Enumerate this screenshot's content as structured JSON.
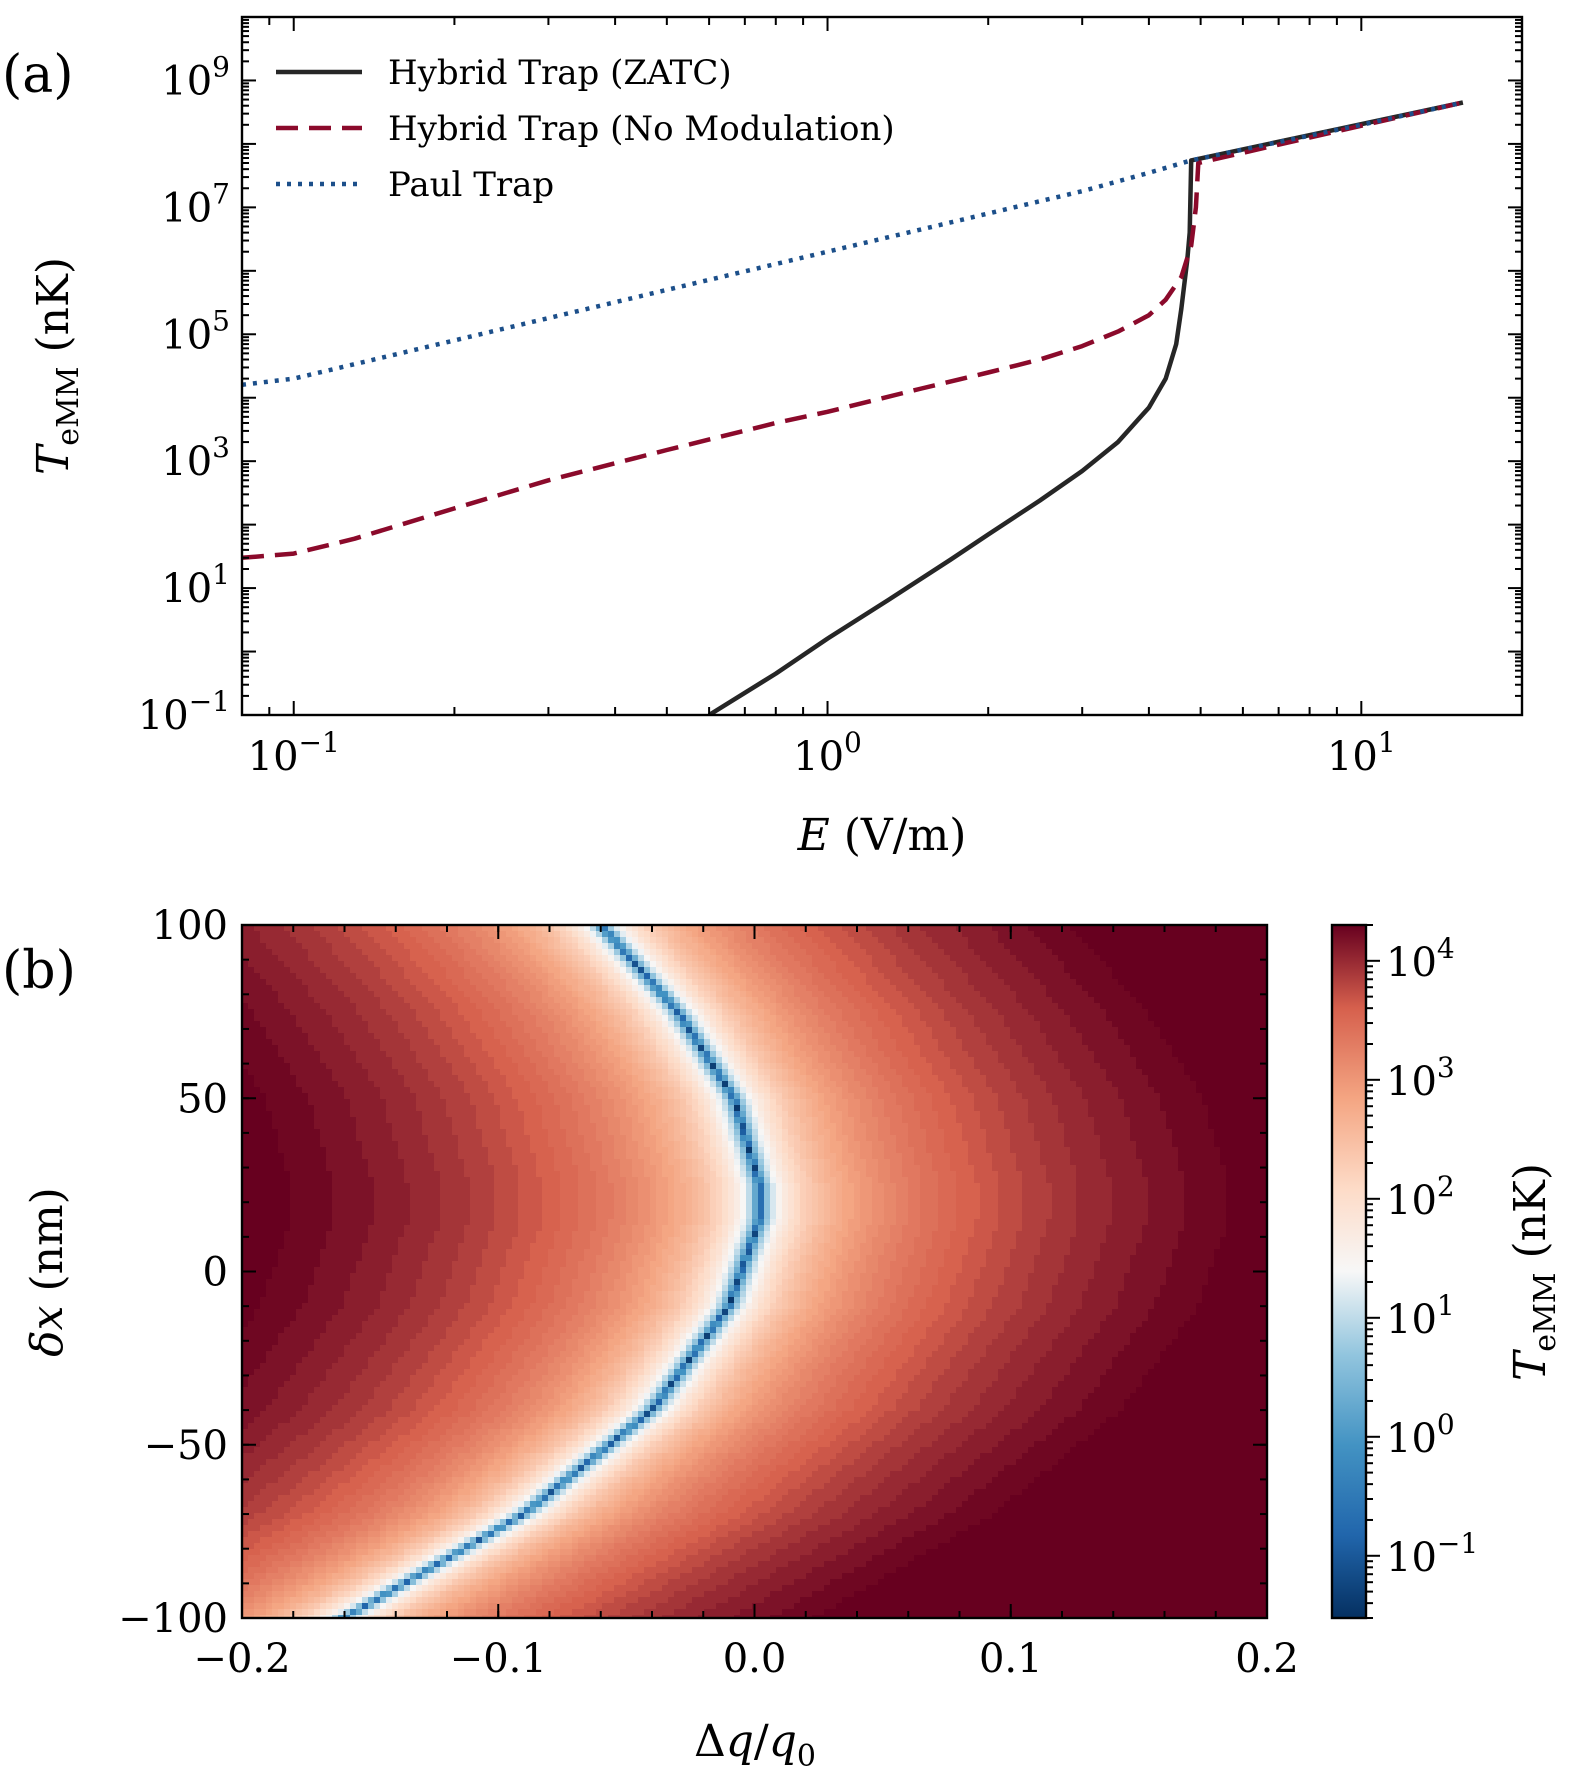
{
  "chart_data": [
    {
      "type": "line",
      "panel_label": "(a)",
      "xlabel": "E (V/m)",
      "ylabel": "T_eMM (nK)",
      "xscale": "log",
      "yscale": "log",
      "xlim": [
        0.08,
        20
      ],
      "ylim": [
        0.1,
        10000000000
      ],
      "x_ticks": [
        {
          "label": "10",
          "exp": "−1"
        },
        {
          "label": "10",
          "exp": "0"
        },
        {
          "label": "10",
          "exp": "1"
        }
      ],
      "y_ticks": [
        {
          "label": "10",
          "exp": "−1"
        },
        {
          "label": "10",
          "exp": "1"
        },
        {
          "label": "10",
          "exp": "3"
        },
        {
          "label": "10",
          "exp": "5"
        },
        {
          "label": "10",
          "exp": "7"
        },
        {
          "label": "10",
          "exp": "9"
        }
      ],
      "legend_position": "upper-left",
      "series": [
        {
          "name": "Hybrid Trap (ZATC)",
          "style": "solid",
          "color": "#262626",
          "points": [
            [
              0.6,
              0.1
            ],
            [
              0.8,
              0.45
            ],
            [
              1.0,
              1.6
            ],
            [
              1.3,
              6.5
            ],
            [
              1.7,
              28
            ],
            [
              2.0,
              70
            ],
            [
              2.5,
              240
            ],
            [
              3.0,
              700
            ],
            [
              3.5,
              2000
            ],
            [
              4.0,
              7000
            ],
            [
              4.3,
              20000
            ],
            [
              4.5,
              70000
            ],
            [
              4.6,
              250000
            ],
            [
              4.72,
              1500000
            ],
            [
              4.77,
              4000000
            ],
            [
              4.8,
              55000000
            ],
            [
              15.5,
              450000000
            ]
          ]
        },
        {
          "name": "Hybrid Trap (No Modulation)",
          "style": "dashed",
          "color": "#8b0a2b",
          "points": [
            [
              0.08,
              30
            ],
            [
              0.1,
              35
            ],
            [
              0.13,
              60
            ],
            [
              0.2,
              180
            ],
            [
              0.3,
              500
            ],
            [
              0.5,
              1500
            ],
            [
              0.8,
              4000
            ],
            [
              1.0,
              6000
            ],
            [
              1.5,
              14000
            ],
            [
              2.0,
              25000
            ],
            [
              2.5,
              40000
            ],
            [
              3.0,
              65000
            ],
            [
              3.5,
              110000
            ],
            [
              4.0,
              200000
            ],
            [
              4.3,
              350000
            ],
            [
              4.6,
              800000
            ],
            [
              4.8,
              2500000
            ],
            [
              4.9,
              10000000
            ],
            [
              4.95,
              50000000
            ],
            [
              15.5,
              450000000
            ]
          ]
        },
        {
          "name": "Paul Trap",
          "style": "dotted",
          "color": "#1c4f8a",
          "points": [
            [
              0.08,
              16000
            ],
            [
              0.1,
              20000
            ],
            [
              0.15,
              45000
            ],
            [
              0.2,
              80000
            ],
            [
              0.3,
              180000
            ],
            [
              0.5,
              500000
            ],
            [
              1.0,
              2000000
            ],
            [
              2.0,
              8000000
            ],
            [
              3.0,
              18000000
            ],
            [
              4.0,
              35000000
            ],
            [
              4.8,
              55000000
            ],
            [
              10.0,
              200000000
            ],
            [
              15.5,
              450000000
            ]
          ]
        }
      ]
    },
    {
      "type": "heatmap",
      "panel_label": "(b)",
      "xlabel": "Δq/q₀",
      "ylabel": "δx (nm)",
      "xlim": [
        -0.2,
        0.2
      ],
      "ylim": [
        -100,
        100
      ],
      "x_ticks": [
        "−0.2",
        "−0.1",
        "0.0",
        "0.1",
        "0.2"
      ],
      "x_tick_values": [
        -0.2,
        -0.1,
        0.0,
        0.1,
        0.2
      ],
      "y_ticks": [
        "−100",
        "−50",
        "0",
        "50",
        "100"
      ],
      "y_tick_values": [
        -100,
        -50,
        0,
        50,
        100
      ],
      "minimum_curve": {
        "description": "zero-eMM locus",
        "points": [
          [
            -0.06,
            100
          ],
          [
            -0.03,
            75
          ],
          [
            -0.008,
            50
          ],
          [
            0.002,
            25
          ],
          [
            0.002,
            15
          ],
          [
            -0.01,
            -10
          ],
          [
            -0.04,
            -40
          ],
          [
            -0.09,
            -70
          ],
          [
            -0.16,
            -100
          ]
        ]
      },
      "colorbar": {
        "label": "T_eMM (nK)",
        "scale": "log",
        "range": [
          0.03,
          20000
        ],
        "colormap": "RdBu_r",
        "ticks": [
          {
            "label": "10",
            "exp": "4",
            "value": 10000
          },
          {
            "label": "10",
            "exp": "3",
            "value": 1000
          },
          {
            "label": "10",
            "exp": "2",
            "value": 100
          },
          {
            "label": "10",
            "exp": "1",
            "value": 10
          },
          {
            "label": "10",
            "exp": "0",
            "value": 1
          },
          {
            "label": "10",
            "exp": "−1",
            "value": 0.1
          }
        ]
      }
    }
  ],
  "colors": {
    "zatc": "#262626",
    "no_mod": "#8b0a2b",
    "paul": "#1c4f8a"
  }
}
